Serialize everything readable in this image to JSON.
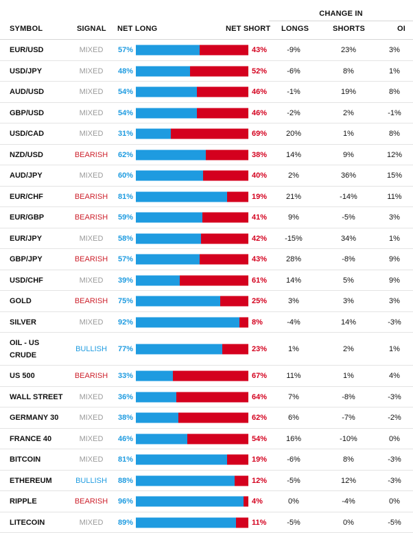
{
  "header": {
    "change_in": "CHANGE IN",
    "symbol": "SYMBOL",
    "signal": "SIGNAL",
    "net_long": "NET LONG",
    "net_short": "NET SHORT",
    "longs": "LONGS",
    "shorts": "SHORTS",
    "oi": "OI"
  },
  "colors": {
    "long": "#1e9be0",
    "short": "#d4001e",
    "mixed": "#9a9a9a",
    "bearish": "#cc1f2a",
    "bullish": "#1e9be0"
  },
  "rows": [
    {
      "symbol": "EUR/USD",
      "signal": "MIXED",
      "net_long": "57%",
      "net_short": "43%",
      "longs": "-9%",
      "shorts": "23%",
      "oi": "3%",
      "long_fraction": 0.57
    },
    {
      "symbol": "USD/JPY",
      "signal": "MIXED",
      "net_long": "48%",
      "net_short": "52%",
      "longs": "-6%",
      "shorts": "8%",
      "oi": "1%",
      "long_fraction": 0.48
    },
    {
      "symbol": "AUD/USD",
      "signal": "MIXED",
      "net_long": "54%",
      "net_short": "46%",
      "longs": "-1%",
      "shorts": "19%",
      "oi": "8%",
      "long_fraction": 0.54
    },
    {
      "symbol": "GBP/USD",
      "signal": "MIXED",
      "net_long": "54%",
      "net_short": "46%",
      "longs": "-2%",
      "shorts": "2%",
      "oi": "-1%",
      "long_fraction": 0.54
    },
    {
      "symbol": "USD/CAD",
      "signal": "MIXED",
      "net_long": "31%",
      "net_short": "69%",
      "longs": "20%",
      "shorts": "1%",
      "oi": "8%",
      "long_fraction": 0.31
    },
    {
      "symbol": "NZD/USD",
      "signal": "BEARISH",
      "net_long": "62%",
      "net_short": "38%",
      "longs": "14%",
      "shorts": "9%",
      "oi": "12%",
      "long_fraction": 0.62
    },
    {
      "symbol": "AUD/JPY",
      "signal": "MIXED",
      "net_long": "60%",
      "net_short": "40%",
      "longs": "2%",
      "shorts": "36%",
      "oi": "15%",
      "long_fraction": 0.6
    },
    {
      "symbol": "EUR/CHF",
      "signal": "BEARISH",
      "net_long": "81%",
      "net_short": "19%",
      "longs": "21%",
      "shorts": "-14%",
      "oi": "11%",
      "long_fraction": 0.81
    },
    {
      "symbol": "EUR/GBP",
      "signal": "BEARISH",
      "net_long": "59%",
      "net_short": "41%",
      "longs": "9%",
      "shorts": "-5%",
      "oi": "3%",
      "long_fraction": 0.59
    },
    {
      "symbol": "EUR/JPY",
      "signal": "MIXED",
      "net_long": "58%",
      "net_short": "42%",
      "longs": "-15%",
      "shorts": "34%",
      "oi": "1%",
      "long_fraction": 0.58
    },
    {
      "symbol": "GBP/JPY",
      "signal": "BEARISH",
      "net_long": "57%",
      "net_short": "43%",
      "longs": "28%",
      "shorts": "-8%",
      "oi": "9%",
      "long_fraction": 0.57
    },
    {
      "symbol": "USD/CHF",
      "signal": "MIXED",
      "net_long": "39%",
      "net_short": "61%",
      "longs": "14%",
      "shorts": "5%",
      "oi": "9%",
      "long_fraction": 0.39
    },
    {
      "symbol": "GOLD",
      "signal": "BEARISH",
      "net_long": "75%",
      "net_short": "25%",
      "longs": "3%",
      "shorts": "3%",
      "oi": "3%",
      "long_fraction": 0.75
    },
    {
      "symbol": "SILVER",
      "signal": "MIXED",
      "net_long": "92%",
      "net_short": "8%",
      "longs": "-4%",
      "shorts": "14%",
      "oi": "-3%",
      "long_fraction": 0.92
    },
    {
      "symbol": "OIL - US CRUDE",
      "signal": "BULLISH",
      "net_long": "77%",
      "net_short": "23%",
      "longs": "1%",
      "shorts": "2%",
      "oi": "1%",
      "long_fraction": 0.77
    },
    {
      "symbol": "US 500",
      "signal": "BEARISH",
      "net_long": "33%",
      "net_short": "67%",
      "longs": "11%",
      "shorts": "1%",
      "oi": "4%",
      "long_fraction": 0.33
    },
    {
      "symbol": "WALL STREET",
      "signal": "MIXED",
      "net_long": "36%",
      "net_short": "64%",
      "longs": "7%",
      "shorts": "-8%",
      "oi": "-3%",
      "long_fraction": 0.36
    },
    {
      "symbol": "GERMANY 30",
      "signal": "MIXED",
      "net_long": "38%",
      "net_short": "62%",
      "longs": "6%",
      "shorts": "-7%",
      "oi": "-2%",
      "long_fraction": 0.38
    },
    {
      "symbol": "FRANCE 40",
      "signal": "MIXED",
      "net_long": "46%",
      "net_short": "54%",
      "longs": "16%",
      "shorts": "-10%",
      "oi": "0%",
      "long_fraction": 0.46
    },
    {
      "symbol": "BITCOIN",
      "signal": "MIXED",
      "net_long": "81%",
      "net_short": "19%",
      "longs": "-6%",
      "shorts": "8%",
      "oi": "-3%",
      "long_fraction": 0.81
    },
    {
      "symbol": "ETHEREUM",
      "signal": "BULLISH",
      "net_long": "88%",
      "net_short": "12%",
      "longs": "-5%",
      "shorts": "12%",
      "oi": "-3%",
      "long_fraction": 0.88
    },
    {
      "symbol": "RIPPLE",
      "signal": "BEARISH",
      "net_long": "96%",
      "net_short": "4%",
      "longs": "0%",
      "shorts": "-4%",
      "oi": "0%",
      "long_fraction": 0.96
    },
    {
      "symbol": "LITECOIN",
      "signal": "MIXED",
      "net_long": "89%",
      "net_short": "11%",
      "longs": "-5%",
      "shorts": "0%",
      "oi": "-5%",
      "long_fraction": 0.89
    }
  ]
}
